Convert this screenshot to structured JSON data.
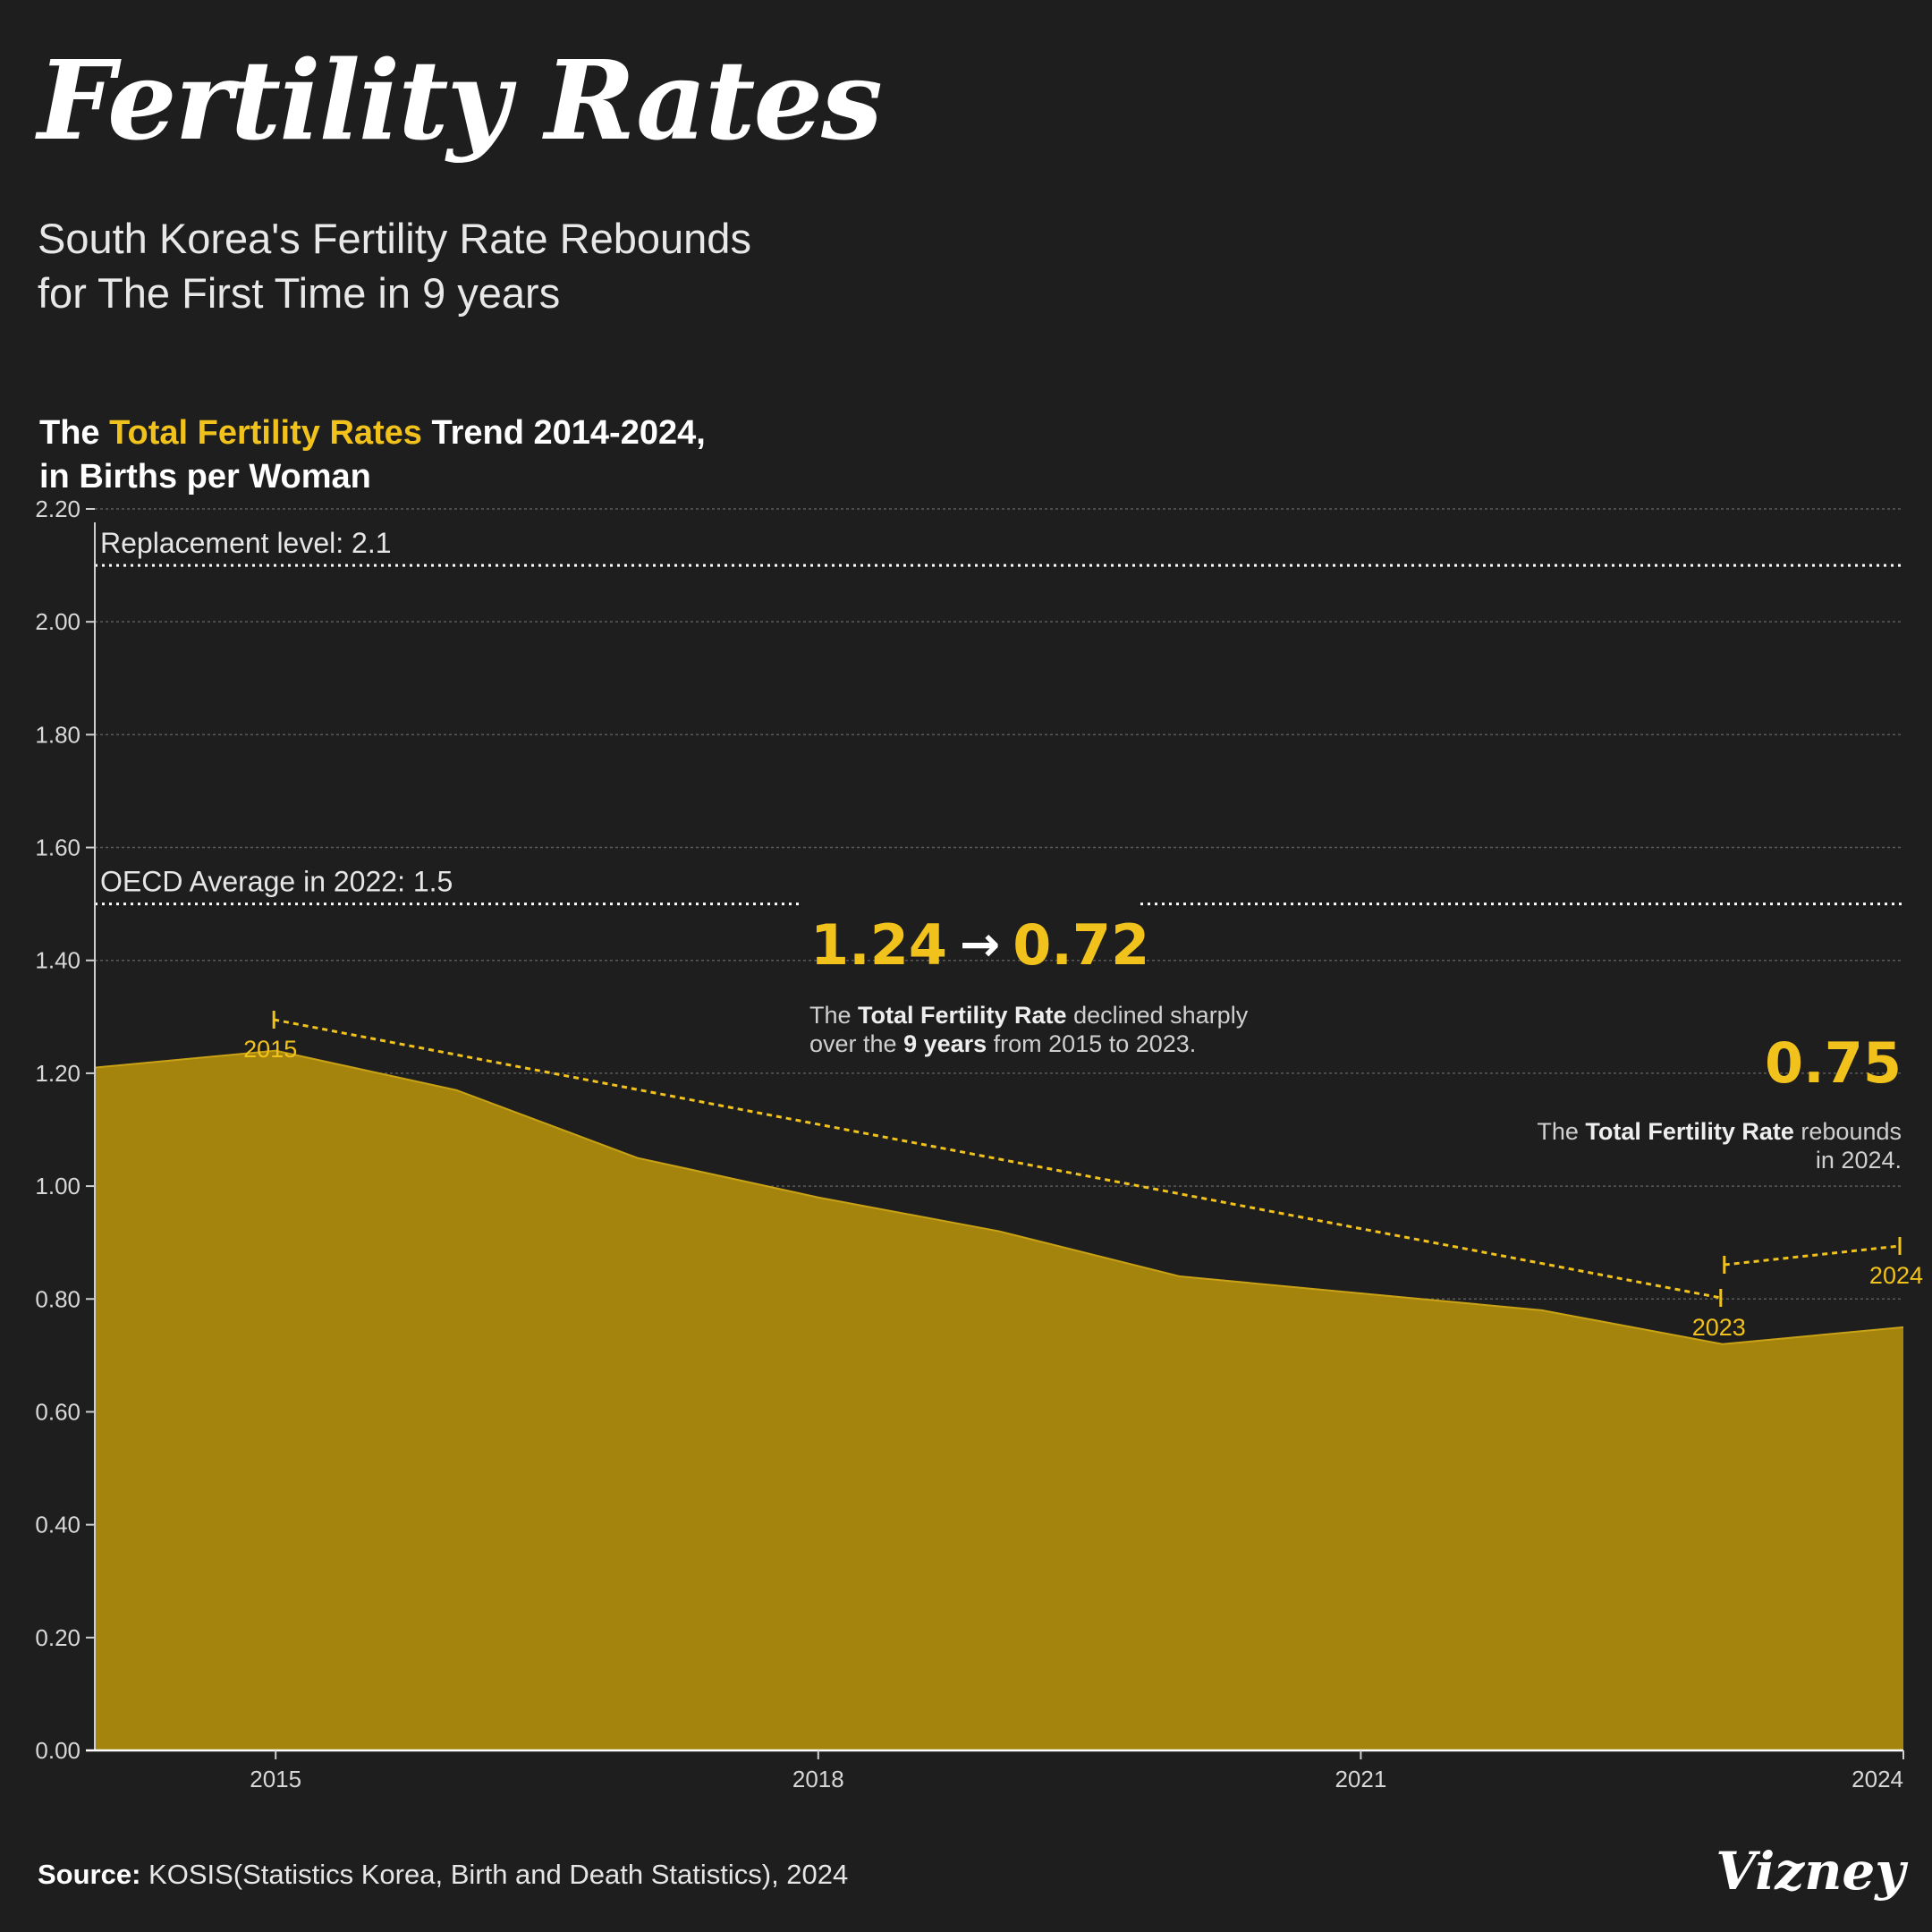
{
  "header": {
    "title": "Fertility Rates",
    "subtitle_line1": "South Korea's Fertility Rate Rebounds",
    "subtitle_line2": "for The First Time in 9 years"
  },
  "chart_heading": {
    "prefix": "The ",
    "highlight": "Total Fertility Rates",
    "suffix": " Trend 2014-2024,",
    "line2": "in Births per Woman"
  },
  "colors": {
    "background": "#1e1e1e",
    "accent": "#f1c21b",
    "area_fill": "#a5840d",
    "area_stroke": "#c9a215"
  },
  "chart_data": {
    "type": "area",
    "title": "The Total Fertility Rates Trend 2014-2024, in Births per Woman",
    "x": [
      2014,
      2015,
      2016,
      2017,
      2018,
      2019,
      2020,
      2021,
      2022,
      2023,
      2024
    ],
    "values": [
      1.21,
      1.24,
      1.17,
      1.05,
      0.98,
      0.92,
      0.84,
      0.81,
      0.78,
      0.72,
      0.75
    ],
    "ylim": [
      0,
      2.2
    ],
    "y_ticks": [
      0.0,
      0.2,
      0.4,
      0.6,
      0.8,
      1.0,
      1.2,
      1.4,
      1.6,
      1.8,
      2.0,
      2.2
    ],
    "y_tick_labels": [
      "0.00",
      "0.20",
      "0.40",
      "0.60",
      "0.80",
      "1.00",
      "1.20",
      "1.40",
      "1.60",
      "1.80",
      "2.00",
      "2.20"
    ],
    "x_ticks": [
      2015,
      2018,
      2021,
      2024
    ],
    "x_tick_labels": [
      "2015",
      "2018",
      "2021",
      "2024"
    ],
    "grid": true,
    "reference_lines": [
      {
        "value": 2.1,
        "label": "Replacement level: 2.1"
      },
      {
        "value": 1.5,
        "label": "OECD Average in 2022: 1.5"
      }
    ],
    "annotations": {
      "decline": {
        "from_value": "1.24",
        "arrow": "→",
        "to_value": "0.72",
        "text1_pre": "The ",
        "text1_bold": "Total Fertility Rate",
        "text1_post": " declined sharply",
        "text2_pre": "over the ",
        "text2_bold": "9 years",
        "text2_post": " from 2015 to 2023.",
        "start_year": 2015,
        "start_label": "2015",
        "end_year": 2023,
        "end_label": "2023"
      },
      "rebound": {
        "value": "0.75",
        "text1_pre": "The ",
        "text1_bold": "Total Fertility Rate",
        "text1_post": " rebounds",
        "text2": "in 2024.",
        "start_year": 2023,
        "end_year": 2024,
        "end_label": "2024"
      }
    }
  },
  "footer": {
    "source_label": "Source:",
    "source_text": " KOSIS(Statistics Korea, Birth and Death Statistics), 2024",
    "brand": "Vizney"
  }
}
